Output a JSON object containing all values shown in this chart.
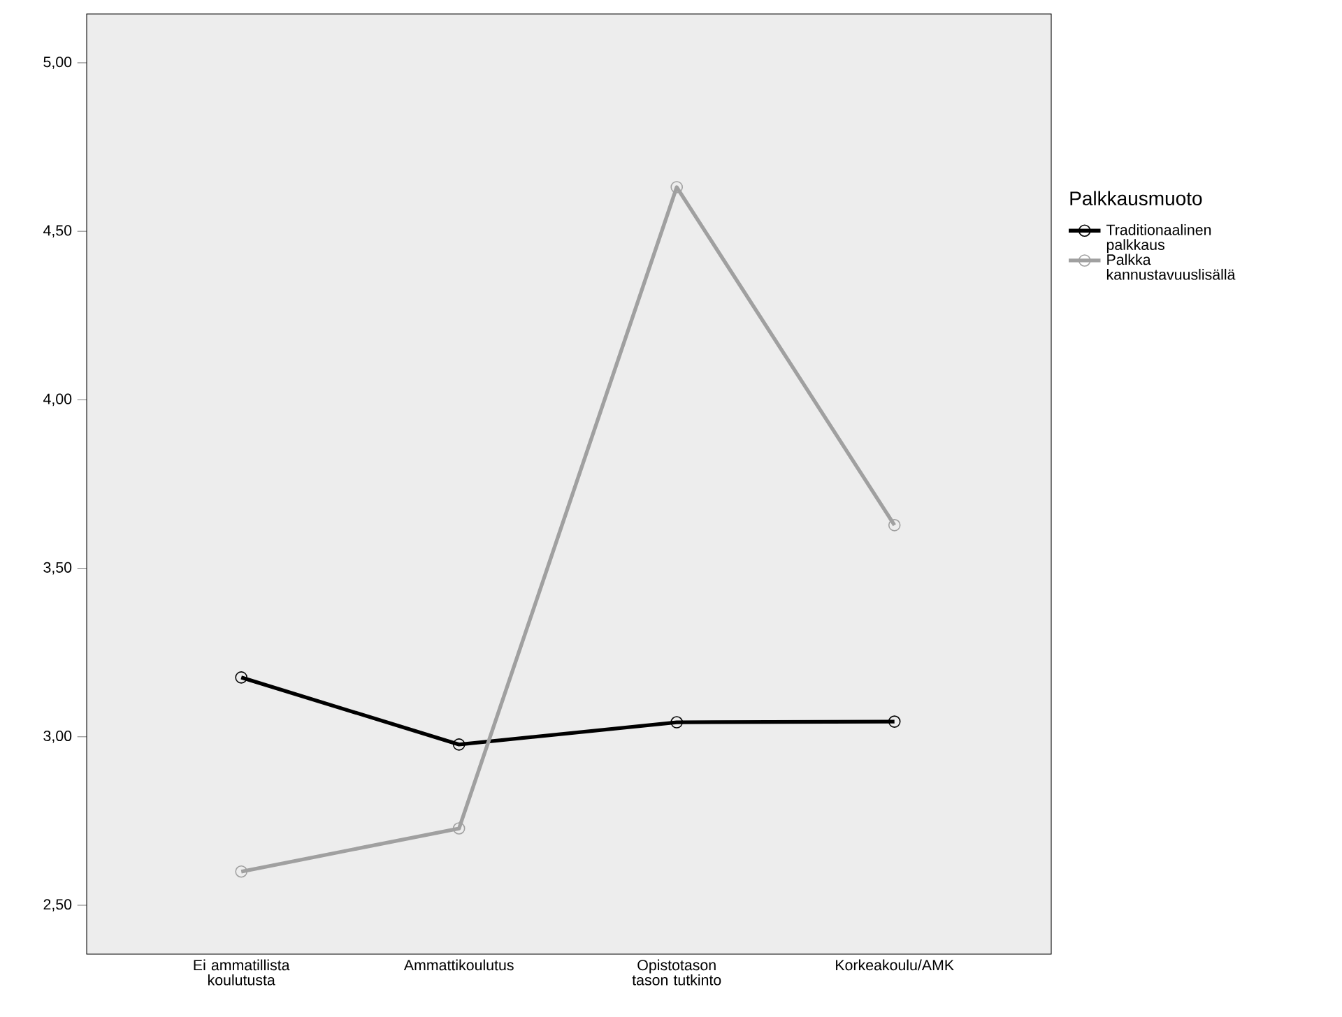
{
  "chart_data": {
    "type": "line",
    "categories": [
      "Ei ammatillista koulutusta",
      "Ammattikoulutus",
      "Opistotason tason tutkinto",
      "Korkeakoulu/AMK"
    ],
    "series": [
      {
        "name": "Traditionaalinen palkkaus",
        "color": "#000000",
        "values": [
          3.176,
          2.977,
          3.043,
          3.045
        ]
      },
      {
        "name": "Palkka kannustavuuslisällä",
        "color": "#a0a0a0",
        "values": [
          2.6,
          2.728,
          4.631,
          3.628
        ]
      }
    ],
    "legend_title": "Palkkausmuoto",
    "legend": "right",
    "marker": "circle",
    "line_style": "solid",
    "grid": false,
    "ylim": [
      2.355,
      5.145
    ],
    "yticks": [
      {
        "value": 2.5,
        "label": "2,50"
      },
      {
        "value": 3.0,
        "label": "3,00"
      },
      {
        "value": 3.5,
        "label": "3,50"
      },
      {
        "value": 4.0,
        "label": "4,00"
      },
      {
        "value": 4.5,
        "label": "4,50"
      },
      {
        "value": 5.0,
        "label": "5,00"
      }
    ]
  }
}
